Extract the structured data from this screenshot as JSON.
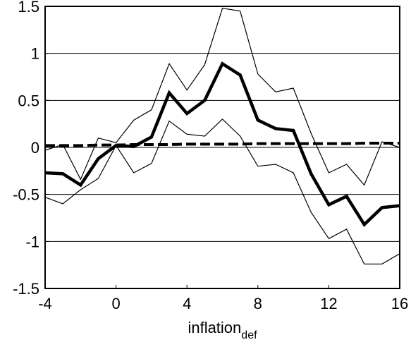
{
  "chart_data": {
    "type": "line",
    "xlabel": {
      "main": "inflation",
      "sub": "def"
    },
    "xlim": [
      -4,
      16
    ],
    "ylim": [
      -1.5,
      1.5
    ],
    "xticks": [
      -4,
      0,
      4,
      8,
      12,
      16
    ],
    "xtick_labels": [
      "-4",
      "0",
      "4",
      "8",
      "12",
      "16"
    ],
    "yticks": [
      -1.5,
      -1,
      -0.5,
      0,
      0.5,
      1,
      1.5
    ],
    "ytick_labels": [
      "-1.5",
      "-1",
      "-0.5",
      "0",
      "0.5",
      "1",
      "1.5"
    ],
    "horizontal_grid": true,
    "vertical_grid": false,
    "x": [
      -4,
      -3,
      -2,
      -1,
      0,
      1,
      2,
      3,
      4,
      5,
      6,
      7,
      8,
      9,
      10,
      11,
      12,
      13,
      14,
      15,
      16
    ],
    "series": [
      {
        "style": "thick-solid",
        "color": "#000000",
        "values": [
          -0.27,
          -0.28,
          -0.4,
          -0.12,
          0.02,
          0.01,
          0.11,
          0.58,
          0.36,
          0.5,
          0.89,
          0.77,
          0.29,
          0.2,
          0.18,
          -0.28,
          -0.61,
          -0.52,
          -0.82,
          -0.64,
          -0.62
        ]
      },
      {
        "style": "thin-solid",
        "color": "#000000",
        "values": [
          -0.03,
          0.03,
          -0.34,
          0.1,
          0.05,
          0.29,
          0.4,
          0.89,
          0.61,
          0.88,
          1.48,
          1.45,
          0.78,
          0.59,
          0.63,
          0.15,
          -0.27,
          -0.18,
          -0.4,
          0.06,
          0.0
        ]
      },
      {
        "style": "thin-solid",
        "color": "#000000",
        "values": [
          -0.53,
          -0.6,
          -0.45,
          -0.33,
          0.02,
          -0.27,
          -0.17,
          0.28,
          0.14,
          0.12,
          0.3,
          0.12,
          -0.2,
          -0.18,
          -0.27,
          -0.69,
          -0.97,
          -0.87,
          -1.24,
          -1.24,
          -1.13
        ]
      },
      {
        "style": "thick-dashed",
        "color": "#000000",
        "values": [
          0.02,
          0.02,
          0.02,
          0.025,
          0.025,
          0.03,
          0.03,
          0.03,
          0.035,
          0.035,
          0.035,
          0.035,
          0.04,
          0.04,
          0.04,
          0.04,
          0.04,
          0.04,
          0.045,
          0.045,
          0.045
        ]
      }
    ]
  }
}
